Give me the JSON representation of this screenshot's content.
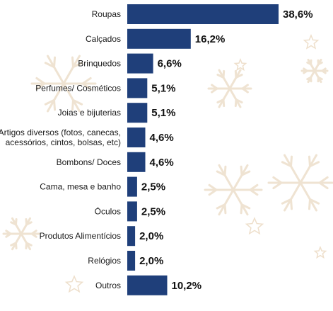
{
  "chart_data": {
    "type": "bar",
    "orientation": "horizontal",
    "categories": [
      "Roupas",
      "Calçados",
      "Brinquedos",
      "Perfumes/ Cosméticos",
      "Joias e bijuterias",
      [
        "Artigos diversos (fotos, canecas,",
        "acessórios, cintos, bolsas, etc)"
      ],
      "Bombons/ Doces",
      "Cama, mesa e banho",
      "Óculos",
      "Produtos Alimentícios",
      "Relógios",
      "Outros"
    ],
    "values": [
      38.6,
      16.2,
      6.6,
      5.1,
      5.1,
      4.6,
      4.6,
      2.5,
      2.5,
      2.0,
      2.0,
      10.2
    ],
    "value_labels": [
      "38,6%",
      "16,2%",
      "6,6%",
      "5,1%",
      "5,1%",
      "4,6%",
      "4,6%",
      "2,5%",
      "2,5%",
      "2,0%",
      "2,0%",
      "10,2%"
    ],
    "bar_color": "#1f3f7a",
    "grid": false,
    "legend": "none"
  },
  "background": {
    "decoration": "snowflakes-and-stars",
    "color": "#efe3d2"
  }
}
